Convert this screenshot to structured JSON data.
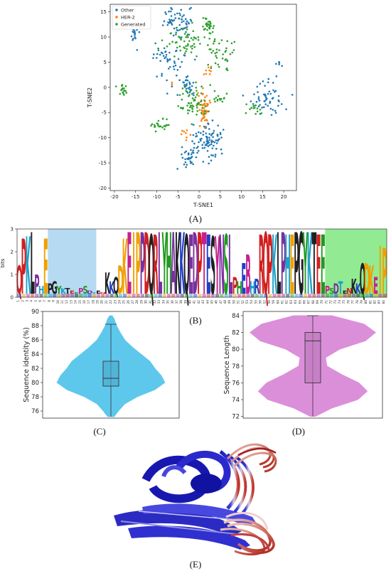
{
  "captions": {
    "a": "(A)",
    "b": "(B)",
    "c": "(C)",
    "d": "(D)",
    "e": "(E)"
  },
  "chart_data": [
    {
      "type": "scatter",
      "panel": "A",
      "title": "",
      "xlabel": "T-SNE1",
      "ylabel": "T-SNE2",
      "xlim": [
        -21,
        23
      ],
      "ylim": [
        -20.5,
        16.5
      ],
      "xticks": [
        -20,
        -15,
        -10,
        -5,
        0,
        5,
        10,
        15,
        20
      ],
      "yticks": [
        -20,
        -15,
        -10,
        -5,
        0,
        5,
        10,
        15
      ],
      "legend_position": "top-left",
      "grid": false,
      "series": [
        {
          "name": "Other",
          "color": "#1f77b4",
          "clusters": [
            {
              "center": [
                -5,
                13
              ],
              "spread": [
                2.4,
                1.8
              ],
              "count": 60
            },
            {
              "center": [
                -15,
                10.5
              ],
              "spread": [
                1.0,
                1.0
              ],
              "count": 14
            },
            {
              "center": [
                -7,
                5.5
              ],
              "spread": [
                2.6,
                2.2
              ],
              "count": 45
            },
            {
              "center": [
                -3,
                0.5
              ],
              "spread": [
                2.0,
                1.6
              ],
              "count": 30
            },
            {
              "center": [
                2,
                -11
              ],
              "spread": [
                3.0,
                2.6
              ],
              "count": 90
            },
            {
              "center": [
                -3,
                -14
              ],
              "spread": [
                2.0,
                1.6
              ],
              "count": 28
            },
            {
              "center": [
                16,
                -2
              ],
              "spread": [
                3.0,
                2.4
              ],
              "count": 55
            },
            {
              "center": [
                19,
                5
              ],
              "spread": [
                0.6,
                0.6
              ],
              "count": 5
            }
          ]
        },
        {
          "name": "HER-2",
          "color": "#ff7f0e",
          "clusters": [
            {
              "center": [
                1,
                -4
              ],
              "spread": [
                1.2,
                2.4
              ],
              "count": 55
            },
            {
              "center": [
                -3,
                -9.5
              ],
              "spread": [
                0.8,
                0.8
              ],
              "count": 8
            },
            {
              "center": [
                2,
                3
              ],
              "spread": [
                0.8,
                1.0
              ],
              "count": 8
            },
            {
              "center": [
                -6.5,
                1
              ],
              "spread": [
                0.3,
                0.3
              ],
              "count": 2
            }
          ]
        },
        {
          "name": "Generated",
          "color": "#2ca02c",
          "clusters": [
            {
              "center": [
                2,
                12.5
              ],
              "spread": [
                1.0,
                0.9
              ],
              "count": 28
            },
            {
              "center": [
                -3,
                9
              ],
              "spread": [
                3.2,
                2.2
              ],
              "count": 60
            },
            {
              "center": [
                5,
                7
              ],
              "spread": [
                2.2,
                2.6
              ],
              "count": 40
            },
            {
              "center": [
                -2,
                -3
              ],
              "spread": [
                2.6,
                2.4
              ],
              "count": 60
            },
            {
              "center": [
                -9,
                -7.5
              ],
              "spread": [
                1.3,
                0.9
              ],
              "count": 22
            },
            {
              "center": [
                -18,
                -0.5
              ],
              "spread": [
                0.8,
                1.0
              ],
              "count": 18
            },
            {
              "center": [
                13.5,
                -4
              ],
              "spread": [
                1.4,
                1.4
              ],
              "count": 14
            },
            {
              "center": [
                5,
                -2
              ],
              "spread": [
                1.2,
                1.4
              ],
              "count": 14
            }
          ]
        }
      ]
    },
    {
      "type": "bar",
      "panel": "B",
      "title": "",
      "xlabel": "",
      "ylabel": "bits",
      "ylim": [
        0,
        3
      ],
      "yticks": [
        0,
        1,
        2,
        3
      ],
      "positions": 84,
      "highlighted_regions": [
        {
          "from": 8,
          "to": 18,
          "color": "#a8d4ee"
        },
        {
          "from": 71,
          "to": 84,
          "color": "#7fe87f"
        }
      ],
      "heights": [
        1.4,
        2.6,
        2.7,
        2.9,
        1.0,
        0.5,
        2.6,
        0.6,
        0.7,
        0.5,
        0.4,
        0.4,
        0.3,
        0.2,
        0.4,
        0.5,
        0.3,
        0.2,
        0.3,
        0.2,
        1.1,
        0.7,
        0.9,
        1.4,
        2.6,
        2.9,
        2.9,
        2.9,
        2.9,
        2.9,
        2.8,
        2.8,
        2.9,
        2.9,
        2.9,
        2.9,
        2.9,
        2.9,
        2.8,
        2.8,
        2.9,
        2.9,
        2.9,
        2.8,
        2.7,
        2.7,
        2.8,
        2.8,
        2.8,
        0.9,
        0.7,
        1.5,
        1.9,
        0.7,
        0.8,
        2.8,
        2.9,
        2.8,
        2.8,
        2.9,
        2.9,
        2.8,
        2.8,
        2.9,
        2.9,
        2.9,
        2.9,
        2.9,
        2.8,
        2.8,
        0.5,
        0.4,
        0.6,
        0.7,
        0.3,
        0.4,
        0.8,
        0.6,
        1.5,
        1.5,
        1.4,
        0.9,
        2.3,
        2.2
      ],
      "sequence_text": "QPKL PHEPGYKTEEPSDTENKKQDKEIPPDQRLYHAKKQEDPTESYNSLPHEBHRR"
    },
    {
      "type": "violin",
      "panel": "C",
      "ylabel": "Sequence identity (%)",
      "ylim": [
        75,
        90
      ],
      "yticks": [
        76,
        78,
        80,
        82,
        84,
        86,
        88,
        90
      ],
      "min": 75.2,
      "q1": 79.5,
      "median": 80.6,
      "q3": 83.0,
      "whisker_high": 88.2,
      "max": 89.4,
      "density": [
        [
          75.2,
          0.05
        ],
        [
          76,
          0.12
        ],
        [
          77,
          0.22
        ],
        [
          78,
          0.42
        ],
        [
          79,
          0.7
        ],
        [
          80,
          0.86
        ],
        [
          81,
          0.8
        ],
        [
          82,
          0.7
        ],
        [
          83,
          0.62
        ],
        [
          84,
          0.48
        ],
        [
          85,
          0.34
        ],
        [
          86,
          0.22
        ],
        [
          87,
          0.15
        ],
        [
          88,
          0.09
        ],
        [
          89,
          0.05
        ],
        [
          89.4,
          0.02
        ]
      ],
      "color": "#56c5ec"
    },
    {
      "type": "violin",
      "panel": "D",
      "ylabel": "Sequence Length",
      "ylim": [
        71.8,
        84.5
      ],
      "yticks": [
        72,
        74,
        76,
        78,
        80,
        82,
        84
      ],
      "min": 72,
      "q1": 76,
      "median": 81,
      "q3": 82,
      "max": 84,
      "density": [
        [
          72,
          0.04
        ],
        [
          73,
          0.3
        ],
        [
          74,
          0.7
        ],
        [
          75,
          0.85
        ],
        [
          76,
          0.72
        ],
        [
          77,
          0.45
        ],
        [
          78,
          0.22
        ],
        [
          79,
          0.2
        ],
        [
          80,
          0.42
        ],
        [
          81,
          0.82
        ],
        [
          82,
          0.98
        ],
        [
          83,
          0.8
        ],
        [
          84,
          0.3
        ]
      ],
      "color": "#da8ad8"
    }
  ]
}
